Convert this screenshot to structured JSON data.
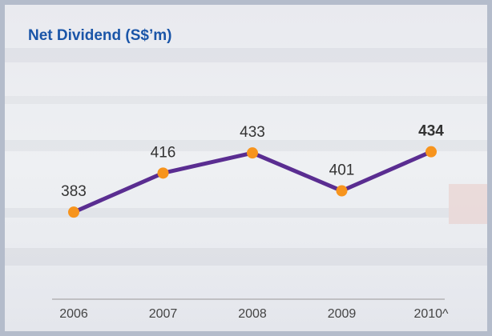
{
  "chart_data": {
    "type": "line",
    "title": "Net Dividend (S$’m)",
    "categories": [
      "2006",
      "2007",
      "2008",
      "2009",
      "2010^"
    ],
    "series": [
      {
        "name": "Net Dividend",
        "color": "#5a2d91",
        "marker_color": "#f7941d",
        "values": [
          383,
          416,
          433,
          401,
          434
        ]
      }
    ],
    "ylim": [
      300,
      500
    ]
  }
}
